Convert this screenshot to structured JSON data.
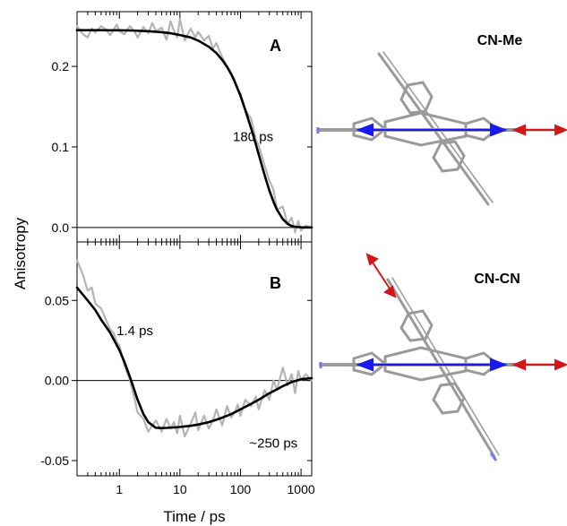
{
  "chart_data": [
    {
      "type": "line",
      "panel_label": "A",
      "xscale": "log",
      "xlim": [
        0.2,
        1500
      ],
      "ylim": [
        -0.018,
        0.268
      ],
      "yticks": [
        0.0,
        0.1,
        0.2
      ],
      "ytick_labels": [
        "0.0",
        "0.1",
        "0.2"
      ],
      "zero_line": true,
      "annotations": [
        {
          "text": "180 ps",
          "x": 75,
          "y": 0.113
        }
      ],
      "series": [
        {
          "role": "data",
          "color": "#b4b4b4",
          "x": [
            0.2,
            0.25,
            0.3,
            0.35,
            0.4,
            0.5,
            0.6,
            0.7,
            0.8,
            0.9,
            1,
            1.2,
            1.5,
            1.8,
            2,
            2.5,
            3,
            3.5,
            4,
            5,
            6,
            7,
            8,
            9,
            10,
            12,
            15,
            18,
            20,
            25,
            30,
            35,
            40,
            50,
            60,
            70,
            80,
            90,
            100,
            120,
            150,
            180,
            200,
            250,
            300,
            350,
            400,
            500,
            600,
            700,
            800,
            900,
            1000,
            1200,
            1500
          ],
          "y": [
            0.25,
            0.24,
            0.236,
            0.247,
            0.242,
            0.25,
            0.246,
            0.239,
            0.245,
            0.252,
            0.244,
            0.24,
            0.25,
            0.243,
            0.236,
            0.249,
            0.241,
            0.254,
            0.244,
            0.248,
            0.233,
            0.256,
            0.244,
            0.236,
            0.259,
            0.232,
            0.247,
            0.236,
            0.243,
            0.232,
            0.238,
            0.222,
            0.229,
            0.211,
            0.2,
            0.192,
            0.183,
            0.171,
            0.166,
            0.146,
            0.135,
            0.109,
            0.102,
            0.077,
            0.058,
            0.047,
            0.022,
            0.026,
            0.004,
            0.012,
            -0.006,
            0.008,
            -0.004,
            0.002,
            0.0
          ]
        },
        {
          "role": "fit",
          "color": "#000000",
          "x": [
            0.2,
            0.3,
            0.5,
            0.7,
            1,
            1.5,
            2,
            3,
            5,
            7,
            10,
            15,
            20,
            30,
            40,
            50,
            60,
            70,
            80,
            100,
            120,
            150,
            180,
            200,
            250,
            300,
            350,
            400,
            500,
            600,
            700,
            800,
            1000,
            1200,
            1500
          ],
          "y": [
            0.245,
            0.245,
            0.245,
            0.2449,
            0.2448,
            0.2446,
            0.2443,
            0.2437,
            0.2425,
            0.2412,
            0.239,
            0.236,
            0.232,
            0.2245,
            0.2165,
            0.208,
            0.1995,
            0.1905,
            0.1815,
            0.1635,
            0.146,
            0.123,
            0.103,
            0.091,
            0.065,
            0.046,
            0.032,
            0.022,
            0.0105,
            0.0045,
            0.0018,
            0.0008,
            0.0001,
            0.0,
            0.0
          ]
        }
      ]
    },
    {
      "type": "line",
      "panel_label": "B",
      "xscale": "log",
      "xlim": [
        0.2,
        1500
      ],
      "ylim": [
        -0.0595,
        0.0865
      ],
      "yticks": [
        -0.05,
        0.0,
        0.05
      ],
      "ytick_labels": [
        "-0.05",
        "0.00",
        "0.05"
      ],
      "xticks": [
        1,
        10,
        100,
        1000
      ],
      "xtick_labels": [
        "1",
        "10",
        "100",
        "1000"
      ],
      "xlabel": "Time / ps",
      "zero_line": true,
      "annotations": [
        {
          "text": "1.4 ps",
          "x": 0.9,
          "y": 0.031
        },
        {
          "text": "~250 ps",
          "x": 140,
          "y": -0.039
        }
      ],
      "series": [
        {
          "role": "data",
          "color": "#b4b4b4",
          "x": [
            0.2,
            0.25,
            0.3,
            0.35,
            0.4,
            0.5,
            0.6,
            0.7,
            0.8,
            0.9,
            1,
            1.2,
            1.5,
            1.8,
            2,
            2.5,
            3,
            3.5,
            4,
            5,
            6,
            7,
            8,
            9,
            10,
            12,
            15,
            18,
            20,
            25,
            30,
            35,
            40,
            50,
            60,
            70,
            80,
            90,
            100,
            120,
            150,
            180,
            200,
            250,
            300,
            350,
            400,
            500,
            600,
            700,
            800,
            900,
            1000,
            1200,
            1500
          ],
          "y": [
            0.075,
            0.066,
            0.056,
            0.058,
            0.048,
            0.045,
            0.038,
            0.032,
            0.03,
            0.024,
            0.022,
            0.01,
            0.0,
            -0.012,
            -0.02,
            -0.024,
            -0.032,
            -0.028,
            -0.025,
            -0.032,
            -0.024,
            -0.03,
            -0.026,
            -0.033,
            -0.022,
            -0.035,
            -0.027,
            -0.02,
            -0.031,
            -0.022,
            -0.03,
            -0.025,
            -0.018,
            -0.028,
            -0.016,
            -0.023,
            -0.02,
            -0.015,
            -0.022,
            -0.012,
            -0.016,
            -0.01,
            -0.018,
            -0.006,
            -0.012,
            0.0,
            -0.006,
            0.008,
            -0.003,
            0.004,
            -0.008,
            0.006,
            0.0,
            0.004,
            0.0
          ]
        },
        {
          "role": "fit",
          "color": "#000000",
          "x": [
            0.2,
            0.3,
            0.4,
            0.5,
            0.7,
            1,
            1.2,
            1.5,
            2,
            2.5,
            3,
            4,
            5,
            6,
            8,
            10,
            15,
            20,
            30,
            40,
            50,
            70,
            100,
            150,
            200,
            300,
            400,
            500,
            700,
            1000,
            1500
          ],
          "y": [
            0.058,
            0.05,
            0.044,
            0.038,
            0.03,
            0.019,
            0.012,
            0.002,
            -0.012,
            -0.021,
            -0.026,
            -0.0295,
            -0.0297,
            -0.0296,
            -0.0293,
            -0.029,
            -0.0283,
            -0.0275,
            -0.026,
            -0.0245,
            -0.0232,
            -0.021,
            -0.018,
            -0.0145,
            -0.012,
            -0.008,
            -0.0055,
            -0.0035,
            -0.001,
            0.0008,
            0.0015
          ]
        }
      ]
    }
  ],
  "shared_ylabel": "Anisotropy",
  "molecules": [
    {
      "label": "CN-Me",
      "colors": {
        "frame": "#9a9a9a",
        "blue_arrow": "#1a1aee",
        "red_arrow": "#d01818",
        "nitrogen": "#7a7af0"
      }
    },
    {
      "label": "CN-CN",
      "colors": {
        "frame": "#9a9a9a",
        "blue_arrow": "#1a1aee",
        "red_arrow": "#d01818",
        "nitrogen": "#7a7af0"
      }
    }
  ]
}
